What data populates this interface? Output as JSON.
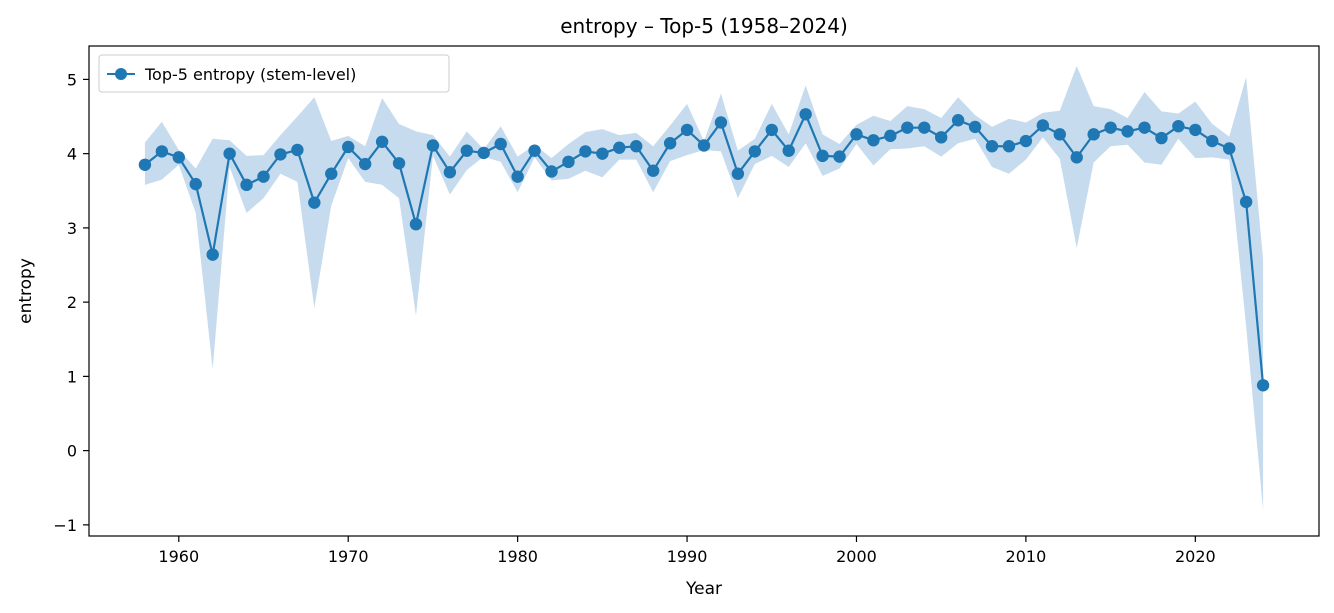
{
  "chart_data": {
    "type": "line",
    "title": "entropy – Top-5 (1958–2024)",
    "xlabel": "Year",
    "ylabel": "entropy",
    "xlim": [
      1954.7,
      2027.3
    ],
    "ylim": [
      -1.15,
      5.45
    ],
    "x_ticks": [
      1960,
      1970,
      1980,
      1990,
      2000,
      2010,
      2020
    ],
    "y_ticks": [
      -1,
      0,
      1,
      2,
      3,
      4,
      5
    ],
    "x_tick_labels": [
      "1960",
      "1970",
      "1980",
      "1990",
      "2000",
      "2010",
      "2020"
    ],
    "y_tick_labels": [
      "−1",
      "0",
      "1",
      "2",
      "3",
      "4",
      "5"
    ],
    "grid": false,
    "legend_position": "top-left",
    "series": [
      {
        "name": "Top-5 entropy (stem-level)",
        "color": "#1f77b4",
        "band_color": "#c6dcee",
        "x": [
          1958,
          1959,
          1960,
          1961,
          1962,
          1963,
          1964,
          1965,
          1966,
          1967,
          1968,
          1969,
          1970,
          1971,
          1972,
          1973,
          1974,
          1975,
          1976,
          1977,
          1978,
          1979,
          1980,
          1981,
          1982,
          1983,
          1984,
          1985,
          1986,
          1987,
          1988,
          1989,
          1990,
          1991,
          1992,
          1993,
          1994,
          1995,
          1996,
          1997,
          1998,
          1999,
          2000,
          2001,
          2002,
          2003,
          2004,
          2005,
          2006,
          2007,
          2008,
          2009,
          2010,
          2011,
          2012,
          2013,
          2014,
          2015,
          2016,
          2017,
          2018,
          2019,
          2020,
          2021,
          2022,
          2023,
          2024
        ],
        "y": [
          3.85,
          4.03,
          3.95,
          3.59,
          2.64,
          4.0,
          3.58,
          3.69,
          3.99,
          4.05,
          3.34,
          3.73,
          4.09,
          3.86,
          4.16,
          3.87,
          3.05,
          4.11,
          3.75,
          4.04,
          4.01,
          4.13,
          3.69,
          4.04,
          3.76,
          3.89,
          4.03,
          4.0,
          4.08,
          4.1,
          3.77,
          4.14,
          4.32,
          4.11,
          4.42,
          3.73,
          4.03,
          4.32,
          4.04,
          4.53,
          3.97,
          3.96,
          4.26,
          4.18,
          4.24,
          4.35,
          4.35,
          4.22,
          4.45,
          4.36,
          4.1,
          4.1,
          4.17,
          4.38,
          4.26,
          3.95,
          4.26,
          4.35,
          4.3,
          4.35,
          4.21,
          4.37,
          4.32,
          4.17,
          4.07,
          3.35,
          0.88
        ],
        "upper": [
          4.15,
          4.43,
          4.05,
          3.8,
          4.2,
          4.18,
          3.97,
          3.98,
          4.25,
          4.5,
          4.76,
          4.17,
          4.24,
          4.1,
          4.75,
          4.4,
          4.3,
          4.25,
          3.96,
          4.3,
          4.06,
          4.37,
          3.96,
          4.12,
          3.94,
          4.13,
          4.29,
          4.33,
          4.25,
          4.28,
          4.1,
          4.38,
          4.67,
          4.17,
          4.81,
          4.04,
          4.2,
          4.67,
          4.26,
          4.92,
          4.26,
          4.13,
          4.39,
          4.51,
          4.44,
          4.64,
          4.6,
          4.48,
          4.76,
          4.52,
          4.36,
          4.47,
          4.42,
          4.55,
          4.58,
          5.18,
          4.64,
          4.6,
          4.48,
          4.83,
          4.57,
          4.54,
          4.7,
          4.4,
          4.23,
          5.03,
          2.58
        ],
        "lower": [
          3.58,
          3.65,
          3.85,
          3.2,
          1.1,
          3.82,
          3.2,
          3.4,
          3.73,
          3.62,
          1.92,
          3.3,
          3.94,
          3.62,
          3.58,
          3.4,
          1.82,
          3.97,
          3.45,
          3.78,
          3.96,
          3.89,
          3.48,
          3.95,
          3.64,
          3.66,
          3.77,
          3.68,
          3.92,
          3.92,
          3.48,
          3.9,
          3.98,
          4.05,
          4.03,
          3.4,
          3.86,
          3.97,
          3.82,
          4.14,
          3.7,
          3.8,
          4.13,
          3.84,
          4.06,
          4.07,
          4.1,
          3.96,
          4.14,
          4.2,
          3.82,
          3.73,
          3.92,
          4.22,
          3.93,
          2.73,
          3.88,
          4.1,
          4.12,
          3.88,
          3.85,
          4.2,
          3.94,
          3.95,
          3.92,
          1.67,
          -0.8
        ]
      }
    ]
  }
}
